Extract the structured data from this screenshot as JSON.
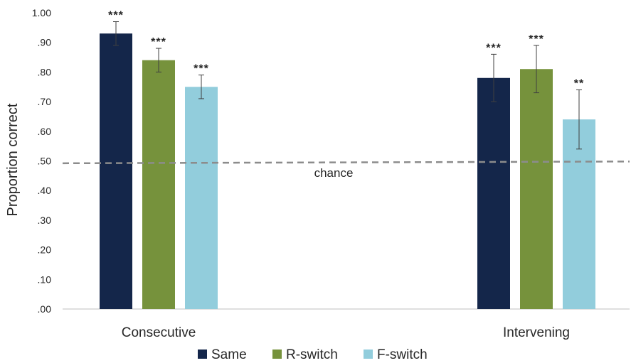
{
  "chart_data": {
    "type": "bar",
    "ylabel": "Proportion correct",
    "ylim": [
      0,
      1
    ],
    "yticks": [
      0,
      0.1,
      0.2,
      0.3,
      0.4,
      0.5,
      0.6,
      0.7,
      0.8,
      0.9,
      1.0
    ],
    "ytick_labels": [
      ".00",
      ".10",
      ".20",
      ".30",
      ".40",
      ".50",
      ".60",
      ".70",
      ".80",
      ".90",
      "1.00"
    ],
    "categories": [
      "Consecutive",
      "Intervening"
    ],
    "series": [
      {
        "name": "Same",
        "color": "#14264a",
        "values": [
          0.93,
          0.78
        ],
        "error": [
          0.04,
          0.08
        ],
        "significance": [
          "***",
          "***"
        ]
      },
      {
        "name": "R-switch",
        "color": "#76923c",
        "values": [
          0.84,
          0.81
        ],
        "error": [
          0.04,
          0.08
        ],
        "significance": [
          "***",
          "***"
        ]
      },
      {
        "name": "F-switch",
        "color": "#92cddc",
        "values": [
          0.75,
          0.64
        ],
        "error": [
          0.04,
          0.1
        ],
        "significance": [
          "***",
          "**"
        ]
      }
    ],
    "reference_line": {
      "label": "chance",
      "y_start": 0.492,
      "y_end": 0.498,
      "style": "dashed",
      "color": "#8c8c8c"
    },
    "legend_position": "bottom"
  }
}
